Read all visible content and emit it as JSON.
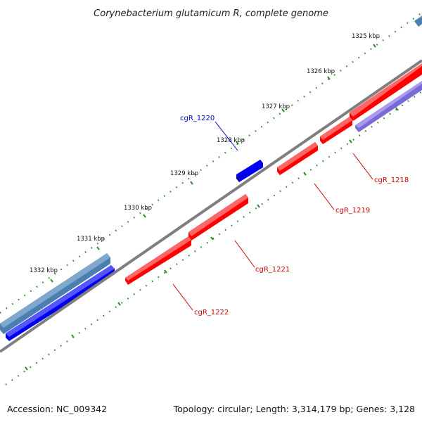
{
  "title": "Corynebacterium glutamicum R, complete genome",
  "footer": {
    "accession": "Accession: NC_009342",
    "summary": "Topology: circular; Length: 3,314,179 bp; Genes: 3,128"
  },
  "colors": {
    "backbone": "#7f7f7f",
    "tick": "#2e8b2e",
    "forward_gene": "#0000ee",
    "forward_gene_alt": "#4a7fb0",
    "reverse_gene": "#ff0000",
    "reverse_gene_alt": "#7a6ad8",
    "label_forward": "#0000cc",
    "label_reverse": "#cc0000"
  },
  "scale_labels": [
    "1325 kbp",
    "1326 kbp",
    "1327 kbp",
    "1328 kbp",
    "1329 kbp",
    "1330 kbp",
    "1331 kbp",
    "1332 kbp"
  ],
  "gene_labels": [
    {
      "text": "cgR_1218",
      "strand": "reverse"
    },
    {
      "text": "cgR_1219",
      "strand": "reverse"
    },
    {
      "text": "cgR_1220",
      "strand": "forward"
    },
    {
      "text": "cgR_1221",
      "strand": "reverse"
    },
    {
      "text": "cgR_1222",
      "strand": "reverse"
    }
  ]
}
